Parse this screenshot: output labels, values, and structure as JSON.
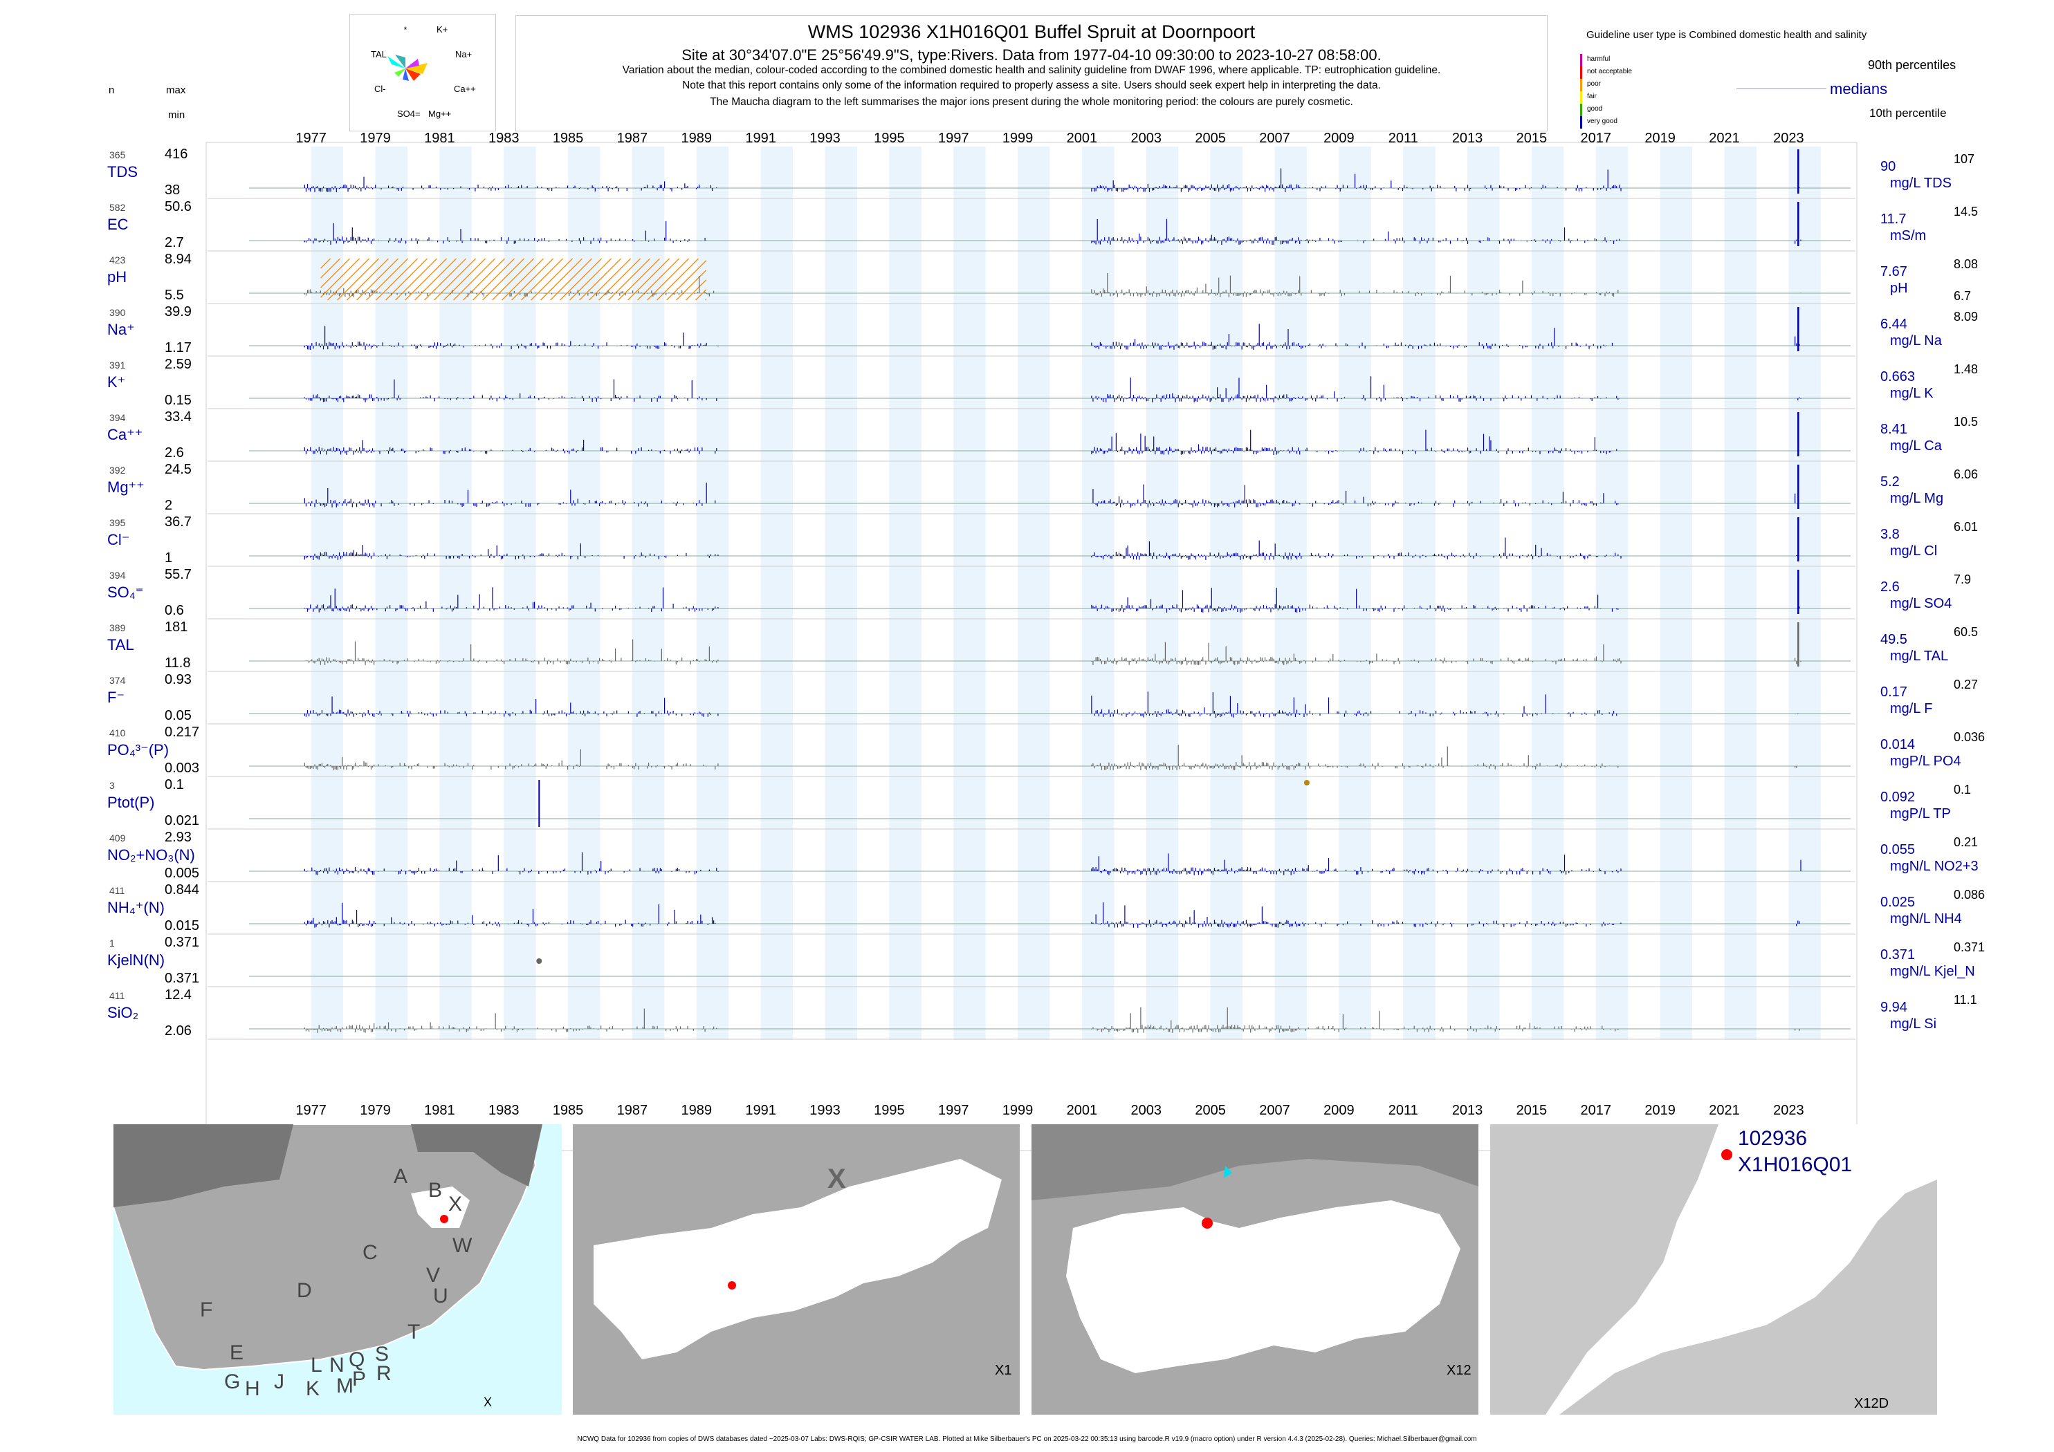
{
  "header": {
    "title": "WMS 102936 X1H016Q01 Buffel Spruit at Doornpoort",
    "line2": "Site at 30°34'07.0\"E 25°56'49.9\"S, type:Rivers.  Data from 1977-04-10 09:30:00 to 2023-10-27 08:58:00.",
    "line3": "Variation about the median,  colour-coded according to the combined domestic health and salinity guideline from DWAF 1996, where applicable. TP: eutrophication guideline.",
    "line4": "Note that this report contains only some of the information required to properly assess a site. Users should seek expert help in interpreting the data.",
    "line5": "The Maucha diagram to the left summarises the major ions present during the whole monitoring period: the colours are purely cosmetic."
  },
  "col_headers": {
    "n": "n",
    "max": "max",
    "min": "min"
  },
  "legend": {
    "guideline_text": "Guideline user type is Combined domestic health and salinity",
    "classes": [
      "harmful",
      "not acceptable",
      "poor",
      "fair",
      "good",
      "very good"
    ],
    "class_colors": [
      "#cc0099",
      "#ff0000",
      "#ff9900",
      "#ffee00",
      "#33aa00",
      "#0000aa"
    ],
    "p90_label": "90th percentiles",
    "median_label": "medians",
    "p10_label": "10th percentile"
  },
  "maucha": {
    "labels": [
      "*",
      "K+",
      "TAL",
      "Na+",
      "Cl-",
      "Ca++",
      "SO4=",
      "Mg++"
    ],
    "colors": [
      "#00ffee",
      "#00cc66",
      "#ffcc00",
      "#ff3300",
      "#aaaaaa",
      "#cc33ff",
      "#3366ff",
      "#66ff33"
    ]
  },
  "chart_data": {
    "type": "barcode",
    "x_ticks": [
      "1977",
      "1979",
      "1981",
      "1983",
      "1985",
      "1987",
      "1989",
      "1991",
      "1993",
      "1995",
      "1997",
      "1999",
      "2001",
      "2003",
      "2005",
      "2007",
      "2009",
      "2011",
      "2013",
      "2015",
      "2017",
      "2019",
      "2021",
      "2023"
    ],
    "x_range": [
      1976.0,
      2025.0
    ],
    "data_periods": [
      [
        1977.3,
        1990.2
      ],
      [
        2001.8,
        2009.8
      ],
      [
        2010.0,
        2018.3
      ],
      [
        2023.7,
        2023.9
      ]
    ],
    "high_density_periods": [
      [
        1977.3,
        1979.5
      ],
      [
        2001.8,
        2008.3
      ]
    ],
    "tp_marker": {
      "year": 2008.5,
      "color": "#b8860b"
    },
    "kjel_marker": {
      "year": 1984.6,
      "color": "#666666"
    },
    "ph_hatch": {
      "range": [
        1977.8,
        1989.8
      ],
      "color": "#ff8800"
    },
    "variables": [
      {
        "label": "TDS",
        "n": "365",
        "max": "416",
        "min": "38",
        "median": "90",
        "p90": "107",
        "p10": "",
        "unit": "mg/L TDS",
        "color": "#0000aa",
        "spike": 2023.8
      },
      {
        "label": "EC",
        "n": "582",
        "max": "50.6",
        "min": "2.7",
        "median": "11.7",
        "p90": "14.5",
        "p10": "",
        "unit": "mS/m",
        "color": "#0000aa",
        "spike": 2023.8
      },
      {
        "label": "pH",
        "n": "423",
        "max": "8.94",
        "min": "5.5",
        "median": "7.67",
        "p90": "8.08",
        "p10": "6.7",
        "unit": "pH",
        "color": "#666666",
        "spike": null
      },
      {
        "label": "Na⁺",
        "n": "390",
        "max": "39.9",
        "min": "1.17",
        "median": "6.44",
        "p90": "8.09",
        "p10": "",
        "unit": "mg/L Na",
        "color": "#0000aa",
        "spike": 2023.8
      },
      {
        "label": "K⁺",
        "n": "391",
        "max": "2.59",
        "min": "0.15",
        "median": "0.663",
        "p90": "1.48",
        "p10": "",
        "unit": "mg/L K",
        "color": "#0000aa",
        "spike": null
      },
      {
        "label": "Ca⁺⁺",
        "n": "394",
        "max": "33.4",
        "min": "2.6",
        "median": "8.41",
        "p90": "10.5",
        "p10": "",
        "unit": "mg/L Ca",
        "color": "#0000aa",
        "spike": 2023.8
      },
      {
        "label": "Mg⁺⁺",
        "n": "392",
        "max": "24.5",
        "min": "2",
        "median": "5.2",
        "p90": "6.06",
        "p10": "",
        "unit": "mg/L Mg",
        "color": "#0000aa",
        "spike": 2023.8
      },
      {
        "label": "Cl⁻",
        "n": "395",
        "max": "36.7",
        "min": "1",
        "median": "3.8",
        "p90": "6.01",
        "p10": "",
        "unit": "mg/L Cl",
        "color": "#0000aa",
        "spike": 2023.8
      },
      {
        "label": "SO₄⁼",
        "n": "394",
        "max": "55.7",
        "min": "0.6",
        "median": "2.6",
        "p90": "7.9",
        "p10": "",
        "unit": "mg/L SO4",
        "color": "#0000aa",
        "spike": 2023.8
      },
      {
        "label": "TAL",
        "n": "389",
        "max": "181",
        "min": "11.8",
        "median": "49.5",
        "p90": "60.5",
        "p10": "",
        "unit": "mg/L TAL",
        "color": "#666666",
        "spike": 2023.8
      },
      {
        "label": "F⁻",
        "n": "374",
        "max": "0.93",
        "min": "0.05",
        "median": "0.17",
        "p90": "0.27",
        "p10": "",
        "unit": "mg/L F",
        "color": "#0000aa",
        "spike": null
      },
      {
        "label": "PO₄³⁻(P)",
        "n": "410",
        "max": "0.217",
        "min": "0.003",
        "median": "0.014",
        "p90": "0.036",
        "p10": "",
        "unit": "mgP/L PO4",
        "color": "#666666",
        "spike": null
      },
      {
        "label": "Ptot(P)",
        "n": "3",
        "max": "0.1",
        "min": "0.021",
        "median": "0.092",
        "p90": "0.1",
        "p10": "",
        "unit": "mgP/L TP",
        "color": "#0000aa",
        "spike": null
      },
      {
        "label": "NO₂+NO₃(N)",
        "n": "409",
        "max": "2.93",
        "min": "0.005",
        "median": "0.055",
        "p90": "0.21",
        "p10": "",
        "unit": "mgN/L NO2+3",
        "color": "#0000aa",
        "spike": null
      },
      {
        "label": "NH₄⁺(N)",
        "n": "411",
        "max": "0.844",
        "min": "0.015",
        "median": "0.025",
        "p90": "0.086",
        "p10": "",
        "unit": "mgN/L NH4",
        "color": "#0000aa",
        "spike": null
      },
      {
        "label": "KjelN(N)",
        "n": "1",
        "max": "0.371",
        "min": "0.371",
        "median": "0.371",
        "p90": "0.371",
        "p10": "",
        "unit": "mgN/L Kjel_N",
        "color": "#666666",
        "spike": null
      },
      {
        "label": "SiO₂",
        "n": "411",
        "max": "12.4",
        "min": "2.06",
        "median": "9.94",
        "p90": "11.1",
        "p10": "",
        "unit": "mg/L Si",
        "color": "#666666",
        "spike": null
      }
    ]
  },
  "maps": {
    "map1": {
      "regions": [
        "A",
        "B",
        "X",
        "C",
        "W",
        "D",
        "V",
        "U",
        "F",
        "T",
        "E",
        "G",
        "H",
        "J",
        "K",
        "L",
        "M",
        "N",
        "P",
        "Q",
        "R",
        "S"
      ],
      "corner": "X"
    },
    "map2": {
      "big_label": "X",
      "corner": "X1"
    },
    "map3": {
      "corner": "X12"
    },
    "map4": {
      "site_id": "102936",
      "site_code": "X1H016Q01",
      "corner": "X12D"
    }
  },
  "footer": "NCWQ Data for 102936 from copies of DWS databases dated ~2025-03-07 Labs: DWS-RQIS; GP-CSIR WATER LAB. Plotted at Mike Silberbauer's PC on 2025-03-22 00:35:13 using barcode.R v19.9 (macro option) under R version 4.4.3 (2025-02-28). Queries: Michael.Silberbauer@gmail.com"
}
